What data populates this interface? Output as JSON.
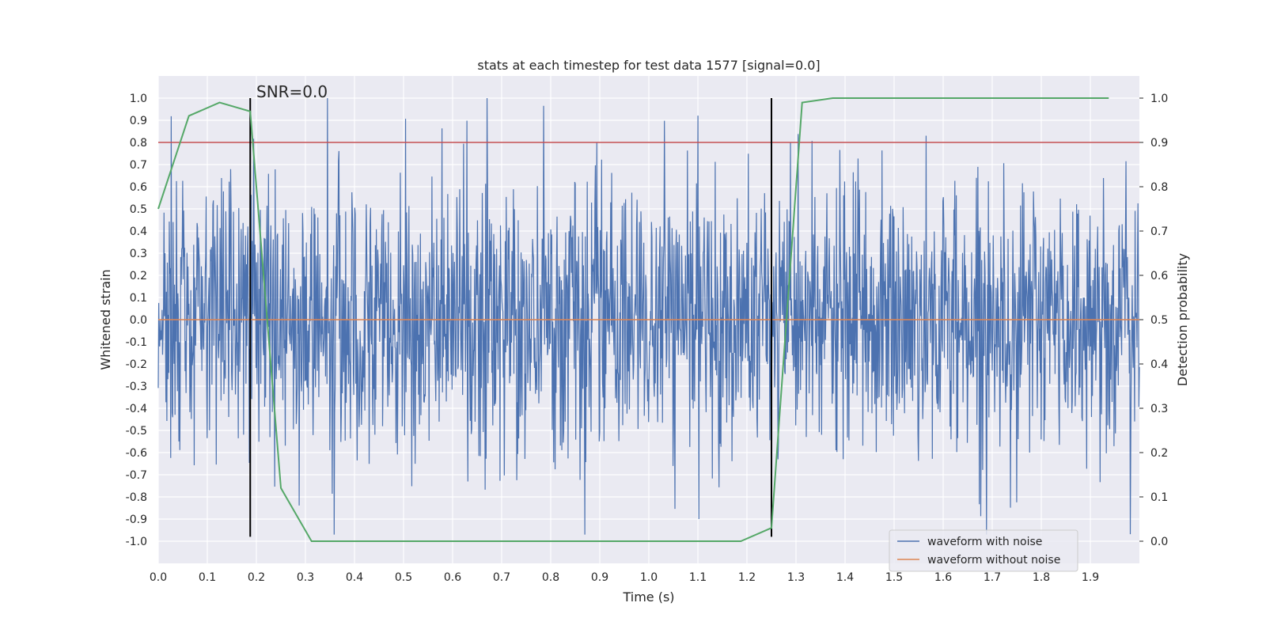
{
  "chart_data": {
    "type": "line",
    "title": "stats at each timestep for test data 1577 [signal=0.0]",
    "xlabel": "Time (s)",
    "ylabel": "Whitened strain",
    "y2label": "Detection probability",
    "xlim": [
      0.0,
      2.0
    ],
    "ylim": [
      -1.1,
      1.1
    ],
    "y2lim": [
      -0.05,
      1.05
    ],
    "grid": true,
    "legend_position": "lower-right",
    "x_ticks": [
      "0.0",
      "0.1",
      "0.2",
      "0.3",
      "0.4",
      "0.5",
      "0.6",
      "0.7",
      "0.8",
      "0.9",
      "1.0",
      "1.1",
      "1.2",
      "1.3",
      "1.4",
      "1.5",
      "1.6",
      "1.7",
      "1.8",
      "1.9"
    ],
    "y_ticks": [
      "1.0",
      "0.9",
      "0.8",
      "0.7",
      "0.6",
      "0.5",
      "0.4",
      "0.3",
      "0.2",
      "0.1",
      "0.0",
      "-0.1",
      "-0.2",
      "-0.3",
      "-0.4",
      "-0.5",
      "-0.6",
      "-0.7",
      "-0.8",
      "-0.9",
      "-1.0"
    ],
    "y2_ticks": [
      "1.0",
      "0.9",
      "0.8",
      "0.7",
      "0.6",
      "0.5",
      "0.4",
      "0.3",
      "0.2",
      "0.1",
      "0.0"
    ],
    "annotation": "SNR=0.0",
    "series": [
      {
        "name": "waveform with noise",
        "color": "#4c72b0",
        "axis": "left",
        "noise": {
          "samples": 2048,
          "t_start": 0.0,
          "t_end": 2.0,
          "y_min": -0.97,
          "y_max": 1.0,
          "std": 0.3
        }
      },
      {
        "name": "waveform without noise",
        "color": "#dd8452",
        "axis": "left",
        "x": [
          0.0,
          2.0
        ],
        "values": [
          0.0,
          0.0
        ]
      },
      {
        "name": "detection probability",
        "color": "#55a868",
        "axis": "right",
        "x": [
          0.0,
          0.0625,
          0.125,
          0.1875,
          0.25,
          0.3125,
          0.375,
          0.4375,
          0.5,
          0.5625,
          0.625,
          0.6875,
          0.75,
          0.8125,
          0.875,
          0.9375,
          1.0,
          1.0625,
          1.125,
          1.1875,
          1.25,
          1.3125,
          1.375,
          1.4375,
          1.5,
          1.5625,
          1.625,
          1.6875,
          1.75,
          1.8125,
          1.875,
          1.9375
        ],
        "values": [
          0.75,
          0.96,
          0.99,
          0.97,
          0.12,
          0.0,
          0.0,
          0.0,
          0.0,
          0.0,
          0.0,
          0.0,
          0.0,
          0.0,
          0.0,
          0.0,
          0.0,
          0.0,
          0.0,
          0.0,
          0.03,
          0.99,
          1.0,
          1.0,
          1.0,
          1.0,
          1.0,
          1.0,
          1.0,
          1.0,
          1.0,
          1.0
        ]
      }
    ],
    "threshold": {
      "axis": "right",
      "value": 0.9,
      "color": "#c44e52"
    },
    "vlines": [
      {
        "x": 0.1875,
        "ymin": -0.98,
        "ymax": 1.0,
        "color": "#000000"
      },
      {
        "x": 1.25,
        "ymin": -0.98,
        "ymax": 1.0,
        "color": "#000000"
      }
    ],
    "legend": [
      "waveform with noise",
      "waveform without noise"
    ]
  }
}
